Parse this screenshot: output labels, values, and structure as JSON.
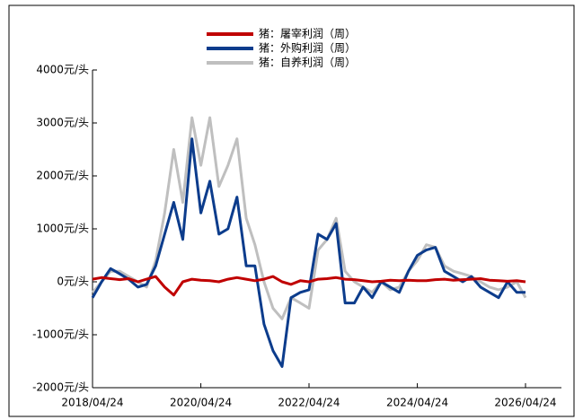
{
  "chart_data": {
    "type": "line",
    "x": [
      "2018/04/24",
      "2018/06/24",
      "2018/08/24",
      "2018/10/24",
      "2018/12/24",
      "2019/02/24",
      "2019/04/24",
      "2019/06/24",
      "2019/08/24",
      "2019/10/24",
      "2019/12/24",
      "2020/02/24",
      "2020/04/24",
      "2020/06/24",
      "2020/08/24",
      "2020/10/24",
      "2020/12/24",
      "2021/02/24",
      "2021/04/24",
      "2021/06/24",
      "2021/08/24",
      "2021/10/24",
      "2021/12/24",
      "2022/02/24",
      "2022/04/24",
      "2022/06/24",
      "2022/08/24",
      "2022/10/24",
      "2022/12/24",
      "2023/02/24",
      "2023/04/24",
      "2023/06/24",
      "2023/08/24",
      "2023/10/24",
      "2023/12/24",
      "2024/02/24",
      "2024/04/24",
      "2024/06/24",
      "2024/08/24",
      "2024/10/24",
      "2024/12/24",
      "2025/02/24",
      "2025/04/24",
      "2025/06/24",
      "2025/08/24",
      "2025/10/24",
      "2025/12/24",
      "2026/02/24",
      "2026/04/24"
    ],
    "series": [
      {
        "name": "猪：屠宰利润（周）",
        "color": "#c00000",
        "values": [
          50,
          80,
          60,
          40,
          60,
          0,
          50,
          100,
          -100,
          -250,
          0,
          50,
          30,
          20,
          0,
          50,
          80,
          50,
          20,
          50,
          100,
          0,
          -50,
          20,
          0,
          50,
          60,
          80,
          50,
          40,
          20,
          0,
          10,
          30,
          20,
          30,
          20,
          20,
          40,
          50,
          30,
          40,
          50,
          60,
          30,
          20,
          10,
          20,
          0
        ]
      },
      {
        "name": "猪：外购利润（周）",
        "color": "#0c3c8c",
        "values": [
          -300,
          0,
          250,
          150,
          50,
          -100,
          -50,
          300,
          900,
          1500,
          800,
          2700,
          1300,
          1900,
          900,
          1000,
          1600,
          300,
          300,
          -800,
          -1300,
          -1600,
          -300,
          -200,
          -150,
          900,
          800,
          1100,
          -400,
          -400,
          -100,
          -300,
          0,
          -100,
          -200,
          200,
          500,
          600,
          650,
          200,
          100,
          0,
          100,
          -100,
          -200,
          -300,
          0,
          -200,
          -200
        ]
      },
      {
        "name": "猪：自养利润（周）",
        "color": "#bfbfbf",
        "values": [
          -200,
          0,
          200,
          200,
          100,
          0,
          -100,
          400,
          1300,
          2500,
          1500,
          3100,
          2200,
          3100,
          1800,
          2200,
          2700,
          1200,
          700,
          0,
          -500,
          -700,
          -300,
          -400,
          -500,
          600,
          800,
          1200,
          200,
          0,
          -100,
          -200,
          0,
          -150,
          -100,
          200,
          400,
          700,
          650,
          300,
          200,
          150,
          100,
          0,
          -100,
          -150,
          -100,
          0,
          -300
        ]
      }
    ],
    "xlim": [
      "2018/04/24",
      "2026/04/24"
    ],
    "xticks": [
      "2018/04/24",
      "2020/04/24",
      "2022/04/24",
      "2024/04/24",
      "2026/04/24"
    ],
    "ylim": [
      -2000,
      4000
    ],
    "yticks": [
      {
        "value": -2000,
        "label": "-2000元/头"
      },
      {
        "value": -1000,
        "label": "-1000元/头"
      },
      {
        "value": 0,
        "label": "0元/头"
      },
      {
        "value": 1000,
        "label": "1000元/头"
      },
      {
        "value": 2000,
        "label": "2000元/头"
      },
      {
        "value": 3000,
        "label": "3000元/头"
      },
      {
        "value": 4000,
        "label": "4000元/头"
      }
    ],
    "legend": "top"
  }
}
